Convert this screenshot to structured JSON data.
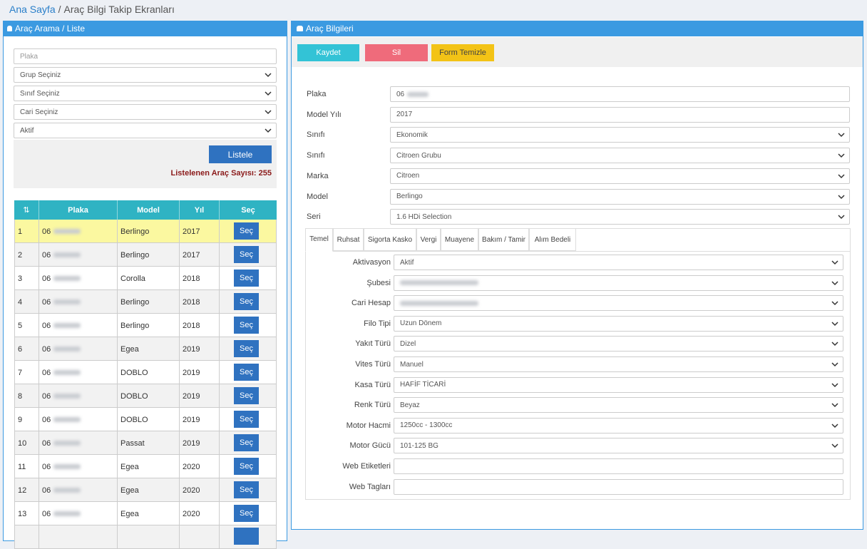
{
  "breadcrumb": {
    "home": "Ana Sayfa",
    "separator": "/",
    "current": "Araç Bilgi Takip Ekranları"
  },
  "search_panel": {
    "title": "Araç Arama / Liste",
    "plate_placeholder": "Plaka",
    "filters": [
      "Grup Seçiniz",
      "Sınıf Seçiniz",
      "Cari Seçiniz",
      "Aktif"
    ],
    "list_button": "Listele",
    "count_label": "Listelenen Araç Sayısı:",
    "count": 255
  },
  "table": {
    "columns": [
      "Plaka",
      "Model",
      "Yıl",
      "Seç"
    ],
    "row_button": "Seç",
    "rows": [
      [
        1,
        "06",
        "Berlingo",
        2017
      ],
      [
        2,
        "06",
        "Berlingo",
        2017
      ],
      [
        3,
        "06",
        "Corolla",
        2018
      ],
      [
        4,
        "06",
        "Berlingo",
        2018
      ],
      [
        5,
        "06",
        "Berlingo",
        2018
      ],
      [
        6,
        "06",
        "Egea",
        2019
      ],
      [
        7,
        "06",
        "DOBLO",
        2019
      ],
      [
        8,
        "06",
        "DOBLO",
        2019
      ],
      [
        9,
        "06",
        "DOBLO",
        2019
      ],
      [
        10,
        "06",
        "Passat",
        2019
      ],
      [
        11,
        "06",
        "Egea",
        2020
      ],
      [
        12,
        "06",
        "Egea",
        2020
      ],
      [
        13,
        "06",
        "Egea",
        2020
      ]
    ]
  },
  "vehicle_panel": {
    "title": "Araç Bilgileri",
    "buttons": [
      "Kaydet",
      "Sil",
      "Form Temizle"
    ],
    "fields": [
      {
        "label": "Plaka",
        "value": "06",
        "redacted": true
      },
      {
        "label": "Model Yılı",
        "value": "2017"
      },
      {
        "label": "Sınıfı",
        "value": "Ekonomik",
        "select": true
      },
      {
        "label": "Sınıfı",
        "value": "Citroen Grubu",
        "select": true
      },
      {
        "label": "Marka",
        "value": "Citroen",
        "select": true
      },
      {
        "label": "Model",
        "value": "Berlingo",
        "select": true
      },
      {
        "label": "Seri",
        "value": "1.6 HDi Selection",
        "select": true
      }
    ],
    "tabs": [
      "Temel",
      "Ruhsat",
      "Sigorta Kasko",
      "Vergi",
      "Muayene",
      "Bakım / Tamir",
      "Alım Bedeli"
    ],
    "tab_fields": [
      {
        "label": "Aktivasyon",
        "value": "Aktif",
        "select": true
      },
      {
        "label": "Şubesi",
        "redacted": true,
        "select": true
      },
      {
        "label": "Cari Hesap",
        "redacted": true,
        "select": true
      },
      {
        "label": "Filo Tipi",
        "value": "Uzun Dönem",
        "select": true
      },
      {
        "label": "Yakıt Türü",
        "value": "Dizel",
        "select": true
      },
      {
        "label": "Vites Türü",
        "value": "Manuel",
        "select": true
      },
      {
        "label": "Kasa Türü",
        "value": "HAFİF TİCARİ",
        "select": true
      },
      {
        "label": "Renk Türü",
        "value": "Beyaz",
        "select": true
      },
      {
        "label": "Motor Hacmi",
        "value": "1250cc - 1300cc",
        "select": true
      },
      {
        "label": "Motor Gücü",
        "value": "101-125 BG",
        "select": true
      },
      {
        "label": "Web Etiketleri"
      },
      {
        "label": "Web Tagları"
      }
    ]
  }
}
